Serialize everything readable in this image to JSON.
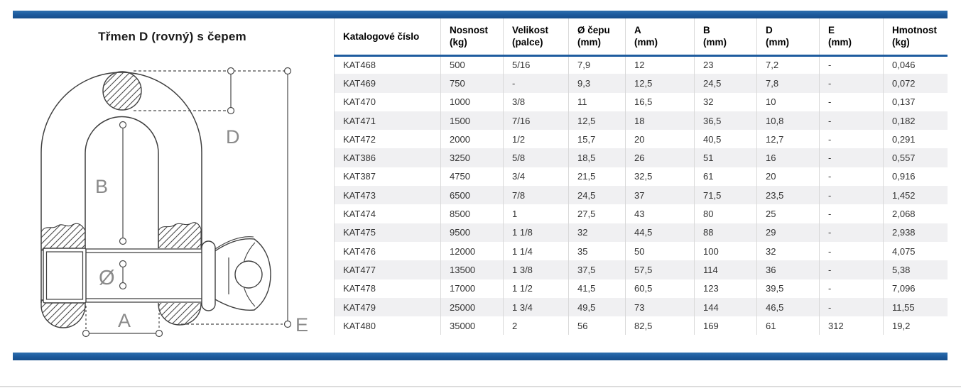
{
  "page": {
    "title": "Třmen D (rovný) s čepem"
  },
  "diagram": {
    "labels": {
      "d": "D",
      "b": "B",
      "dia": "Ø",
      "a": "A",
      "e": "E"
    }
  },
  "table": {
    "columns": [
      {
        "id": "kat",
        "label": "Katalogové číslo",
        "unit": ""
      },
      {
        "id": "nosnost",
        "label": "Nosnost",
        "unit": "(kg)"
      },
      {
        "id": "velikost",
        "label": "Velikost",
        "unit": "(palce)"
      },
      {
        "id": "cepu",
        "label": "Ø čepu",
        "unit": "(mm)"
      },
      {
        "id": "a",
        "label": "A",
        "unit": "(mm)"
      },
      {
        "id": "b",
        "label": "B",
        "unit": "(mm)"
      },
      {
        "id": "d",
        "label": "D",
        "unit": "(mm)"
      },
      {
        "id": "e",
        "label": "E",
        "unit": "(mm)"
      },
      {
        "id": "hmotnost",
        "label": "Hmotnost",
        "unit": "(kg)"
      }
    ],
    "rows": [
      [
        "KAT468",
        "500",
        "5/16",
        "7,9",
        "12",
        "23",
        "7,2",
        "-",
        "0,046"
      ],
      [
        "KAT469",
        "750",
        "-",
        "9,3",
        "12,5",
        "24,5",
        "7,8",
        "-",
        "0,072"
      ],
      [
        "KAT470",
        "1000",
        "3/8",
        "11",
        "16,5",
        "32",
        "10",
        "-",
        "0,137"
      ],
      [
        "KAT471",
        "1500",
        "7/16",
        "12,5",
        "18",
        "36,5",
        "10,8",
        "-",
        "0,182"
      ],
      [
        "KAT472",
        "2000",
        "1/2",
        "15,7",
        "20",
        "40,5",
        "12,7",
        "-",
        "0,291"
      ],
      [
        "KAT386",
        "3250",
        "5/8",
        "18,5",
        "26",
        "51",
        "16",
        "-",
        "0,557"
      ],
      [
        "KAT387",
        "4750",
        "3/4",
        "21,5",
        "32,5",
        "61",
        "20",
        "-",
        "0,916"
      ],
      [
        "KAT473",
        "6500",
        "7/8",
        "24,5",
        "37",
        "71,5",
        "23,5",
        "-",
        "1,452"
      ],
      [
        "KAT474",
        "8500",
        "1",
        "27,5",
        "43",
        "80",
        "25",
        "-",
        "2,068"
      ],
      [
        "KAT475",
        "9500",
        "1 1/8",
        "32",
        "44,5",
        "88",
        "29",
        "-",
        "2,938"
      ],
      [
        "KAT476",
        "12000",
        "1 1/4",
        "35",
        "50",
        "100",
        "32",
        "-",
        "4,075"
      ],
      [
        "KAT477",
        "13500",
        "1 3/8",
        "37,5",
        "57,5",
        "114",
        "36",
        "-",
        "5,38"
      ],
      [
        "KAT478",
        "17000",
        "1 1/2",
        "41,5",
        "60,5",
        "123",
        "39,5",
        "-",
        "7,096"
      ],
      [
        "KAT479",
        "25000",
        "1 3/4",
        "49,5",
        "73",
        "144",
        "46,5",
        "-",
        "11,55"
      ],
      [
        "KAT480",
        "35000",
        "2",
        "56",
        "82,5",
        "169",
        "61",
        "312",
        "19,2"
      ]
    ]
  },
  "colors": {
    "accent_blue": "#1e5c9f",
    "row_stripe": "#f0f0f2",
    "separator": "#d9d9d9"
  }
}
